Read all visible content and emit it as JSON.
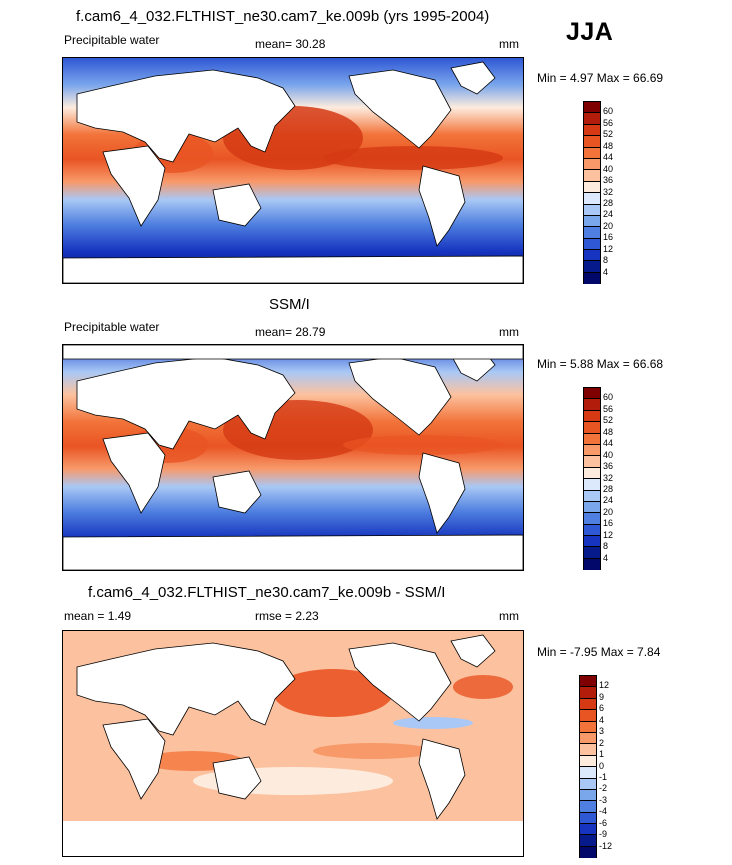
{
  "season": "JJA",
  "panels": [
    {
      "title": "f.cam6_4_032.FLTHIST_ne30.cam7_ke.009b (yrs 1995-2004)",
      "left_label": "Precipitable water",
      "stat_label": "mean=  30.28",
      "units": "mm",
      "minmax": "Min =   4.97 Max =  66.69",
      "levels": [
        "60",
        "56",
        "52",
        "48",
        "44",
        "40",
        "36",
        "32",
        "28",
        "24",
        "20",
        "16",
        "12",
        "8",
        "4"
      ]
    },
    {
      "title": "SSM/I",
      "left_label": "Precipitable water",
      "stat_label": "mean=  28.79",
      "units": "mm",
      "minmax": "Min =   5.88 Max =  66.68",
      "levels": [
        "60",
        "56",
        "52",
        "48",
        "44",
        "40",
        "36",
        "32",
        "28",
        "24",
        "20",
        "16",
        "12",
        "8",
        "4"
      ]
    },
    {
      "title": "f.cam6_4_032.FLTHIST_ne30.cam7_ke.009b - SSM/I",
      "left_label": "mean =   1.49",
      "stat_label": "rmse =   2.23",
      "units": "mm",
      "minmax": "Min =  -7.95 Max =   7.84",
      "levels": [
        "12",
        "9",
        "6",
        "4",
        "3",
        "2",
        "1",
        "0",
        "-1",
        "-2",
        "-3",
        "-4",
        "-6",
        "-9",
        "-12"
      ]
    }
  ],
  "colors": {
    "abs": [
      "#7f0000",
      "#b21d0b",
      "#d53a14",
      "#e95423",
      "#f2743b",
      "#f8996a",
      "#fcc29f",
      "#fdecde",
      "#dce8fb",
      "#a9c8f5",
      "#7aa6ec",
      "#4f7fe0",
      "#2f58d4",
      "#1634bf",
      "#061a8c",
      "#02086a"
    ],
    "diff": [
      "#7f0000",
      "#b21d0b",
      "#d53a14",
      "#e95423",
      "#f2743b",
      "#f8996a",
      "#fcc29f",
      "#fdecde",
      "#dce8fb",
      "#a9c8f5",
      "#7aa6ec",
      "#4f7fe0",
      "#2f58d4",
      "#1634bf",
      "#061a8c",
      "#02086a"
    ]
  }
}
